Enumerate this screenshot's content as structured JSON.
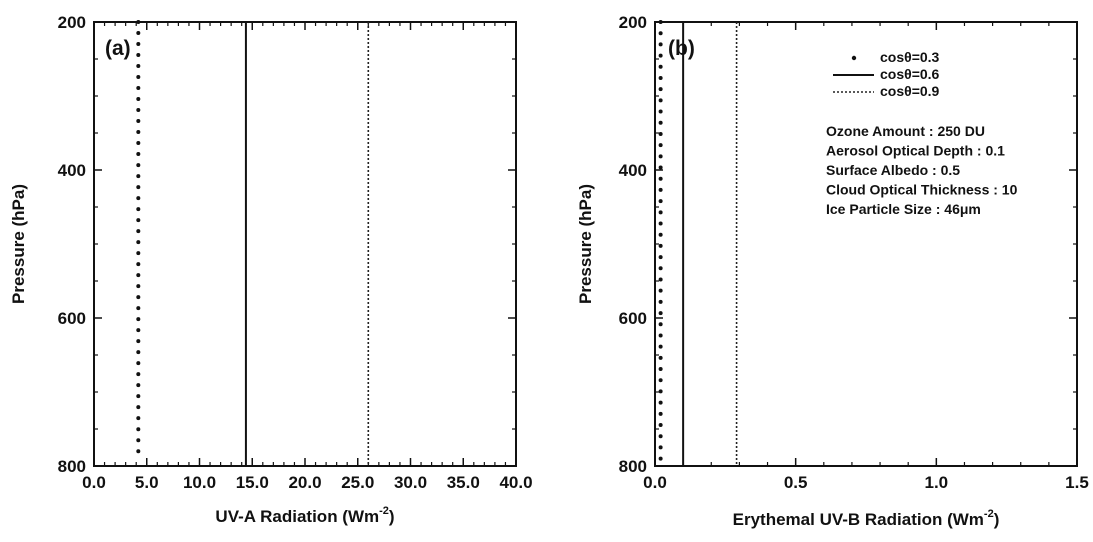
{
  "chart_data": [
    {
      "type": "line",
      "panel_label": "(a)",
      "xlabel": "UV-A Radiation (Wm",
      "xlabel_sup": "-2",
      "xlabel_end": ")",
      "ylabel": "Pressure (hPa)",
      "xlim": [
        0,
        40
      ],
      "ylim": [
        800,
        200
      ],
      "y_inverted": true,
      "x_ticks": [
        "0.0",
        "5.0",
        "10.0",
        "15.0",
        "20.0",
        "25.0",
        "30.0",
        "35.0",
        "40.0"
      ],
      "x_tick_values": [
        0,
        5,
        10,
        15,
        20,
        25,
        30,
        35,
        40
      ],
      "y_ticks": [
        "200",
        "400",
        "600",
        "800"
      ],
      "y_tick_values": [
        200,
        400,
        600,
        800
      ],
      "series": [
        {
          "name": "cosθ=0.3",
          "style": "dots",
          "x": [
            4.2,
            4.2
          ],
          "y": [
            200,
            780
          ]
        },
        {
          "name": "cosθ=0.6",
          "style": "solid",
          "x": [
            14.4,
            14.4
          ],
          "y": [
            200,
            800
          ]
        },
        {
          "name": "cosθ=0.9",
          "style": "dashed",
          "x": [
            26.0,
            26.0
          ],
          "y": [
            200,
            800
          ]
        }
      ]
    },
    {
      "type": "line",
      "panel_label": "(b)",
      "xlabel": "Erythemal UV-B Radiation (Wm",
      "xlabel_sup": "-2",
      "xlabel_end": ")",
      "ylabel": "Pressure (hPa)",
      "xlim": [
        0,
        1.5
      ],
      "ylim": [
        800,
        200
      ],
      "y_inverted": true,
      "x_ticks": [
        "0.0",
        "0.5",
        "1.0",
        "1.5"
      ],
      "x_tick_values": [
        0,
        0.5,
        1.0,
        1.5
      ],
      "y_ticks": [
        "200",
        "400",
        "600",
        "800"
      ],
      "y_tick_values": [
        200,
        400,
        600,
        800
      ],
      "series": [
        {
          "name": "cosθ=0.3",
          "style": "dots",
          "x": [
            0.02,
            0.02
          ],
          "y": [
            200,
            790
          ]
        },
        {
          "name": "cosθ=0.6",
          "style": "solid",
          "x": [
            0.1,
            0.1
          ],
          "y": [
            200,
            800
          ]
        },
        {
          "name": "cosθ=0.9",
          "style": "dashed",
          "x": [
            0.29,
            0.29
          ],
          "y": [
            200,
            800
          ]
        }
      ],
      "legend": {
        "placement": "top-right",
        "entries": [
          "cosθ=0.3",
          "cosθ=0.6",
          "cosθ=0.9"
        ]
      },
      "annotations": [
        "Ozone Amount : 250 DU",
        "Aerosol Optical Depth : 0.1",
        "Surface Albedo : 0.5",
        "Cloud Optical Thickness : 10",
        "Ice Particle Size : 46μm"
      ]
    }
  ]
}
